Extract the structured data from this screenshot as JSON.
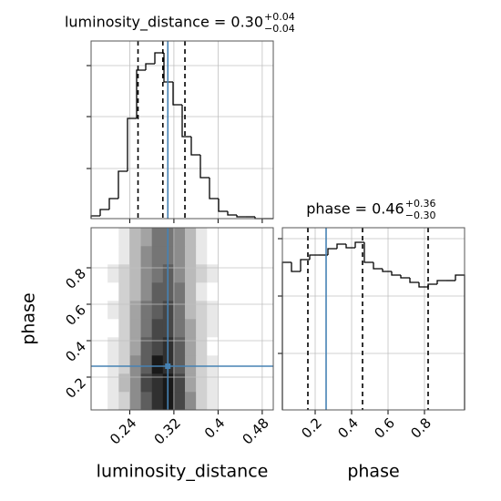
{
  "chart_data": [
    {
      "type": "histogram",
      "title": "luminosity_distance = 0.30",
      "title_sup": "+0.04",
      "title_sub": "−0.04",
      "bins": [
        0.17,
        0.1865,
        0.203,
        0.2195,
        0.236,
        0.2525,
        0.269,
        0.2855,
        0.302,
        0.3185,
        0.335,
        0.3515,
        0.368,
        0.3845,
        0.401,
        0.4175,
        0.434,
        0.4505,
        0.467,
        0.4835,
        0.5
      ],
      "counts": [
        3,
        10,
        22,
        52,
        110,
        163,
        170,
        182,
        150,
        125,
        90,
        70,
        45,
        22,
        8,
        4,
        2,
        2,
        0,
        0
      ],
      "color": "#000000",
      "xlim": [
        0.17,
        0.5
      ],
      "ylim": [
        0,
        195
      ],
      "xticks": [
        0.24,
        0.32,
        0.4,
        0.48
      ],
      "yticks": [
        55,
        112,
        168
      ],
      "show_xtick_labels": false,
      "show_ytick_labels": false,
      "grid": true,
      "quantiles": [
        0.255,
        0.3,
        0.34
      ],
      "truth": 0.309,
      "truth_color": "#4682b4"
    },
    {
      "type": "hist2d",
      "xlabel": "luminosity_distance",
      "ylabel": "phase",
      "x_bins": [
        0.2,
        0.22,
        0.24,
        0.26,
        0.28,
        0.3,
        0.32,
        0.34,
        0.36,
        0.38,
        0.4
      ],
      "y_bins": [
        0.02,
        0.12,
        0.22,
        0.32,
        0.42,
        0.52,
        0.62,
        0.72,
        0.82,
        0.92,
        1.02
      ],
      "z": [
        [
          1,
          2,
          5,
          7,
          9,
          10,
          8,
          5,
          2,
          1
        ],
        [
          1,
          3,
          5,
          8,
          9,
          10,
          8,
          4,
          2,
          1
        ],
        [
          1,
          2,
          5,
          7,
          10,
          9,
          7,
          4,
          2,
          1
        ],
        [
          1,
          2,
          4,
          7,
          8,
          9,
          7,
          4,
          2,
          0
        ],
        [
          0,
          2,
          4,
          6,
          8,
          8,
          6,
          4,
          2,
          1
        ],
        [
          1,
          2,
          4,
          6,
          7,
          8,
          6,
          3,
          2,
          1
        ],
        [
          0,
          2,
          3,
          5,
          7,
          7,
          6,
          3,
          1,
          0
        ],
        [
          1,
          2,
          3,
          5,
          6,
          7,
          5,
          3,
          2,
          1
        ],
        [
          0,
          1,
          3,
          5,
          6,
          6,
          5,
          3,
          1,
          0
        ],
        [
          0,
          1,
          3,
          4,
          6,
          6,
          5,
          3,
          1,
          0
        ]
      ],
      "xlim": [
        0.17,
        0.5
      ],
      "ylim": [
        0.02,
        1.02
      ],
      "xticks": [
        0.24,
        0.32,
        0.4,
        0.48
      ],
      "yticks": [
        0.2,
        0.4,
        0.6,
        0.8
      ],
      "grid": true,
      "truth": [
        0.309,
        0.26
      ],
      "truth_color": "#4682b4"
    },
    {
      "type": "histogram",
      "title": "phase = 0.46",
      "title_sup": "+0.36",
      "title_sub": "−0.30",
      "xlabel": "phase",
      "bins": [
        0.02,
        0.07,
        0.12,
        0.17,
        0.22,
        0.27,
        0.32,
        0.37,
        0.42,
        0.47,
        0.52,
        0.57,
        0.62,
        0.67,
        0.72,
        0.77,
        0.82,
        0.87,
        0.92,
        0.97,
        1.02
      ],
      "counts": [
        162,
        152,
        165,
        170,
        170,
        177,
        182,
        178,
        184,
        162,
        155,
        152,
        148,
        145,
        140,
        135,
        138,
        142,
        142,
        148
      ],
      "color": "#000000",
      "xlim": [
        0.02,
        1.02
      ],
      "ylim": [
        0,
        200
      ],
      "xticks": [
        0.2,
        0.4,
        0.6,
        0.8
      ],
      "yticks": [
        62,
        125,
        188
      ],
      "show_xtick_labels": true,
      "show_ytick_labels": false,
      "grid": true,
      "quantiles": [
        0.16,
        0.46,
        0.82
      ],
      "truth": 0.26,
      "truth_color": "#4682b4"
    }
  ]
}
